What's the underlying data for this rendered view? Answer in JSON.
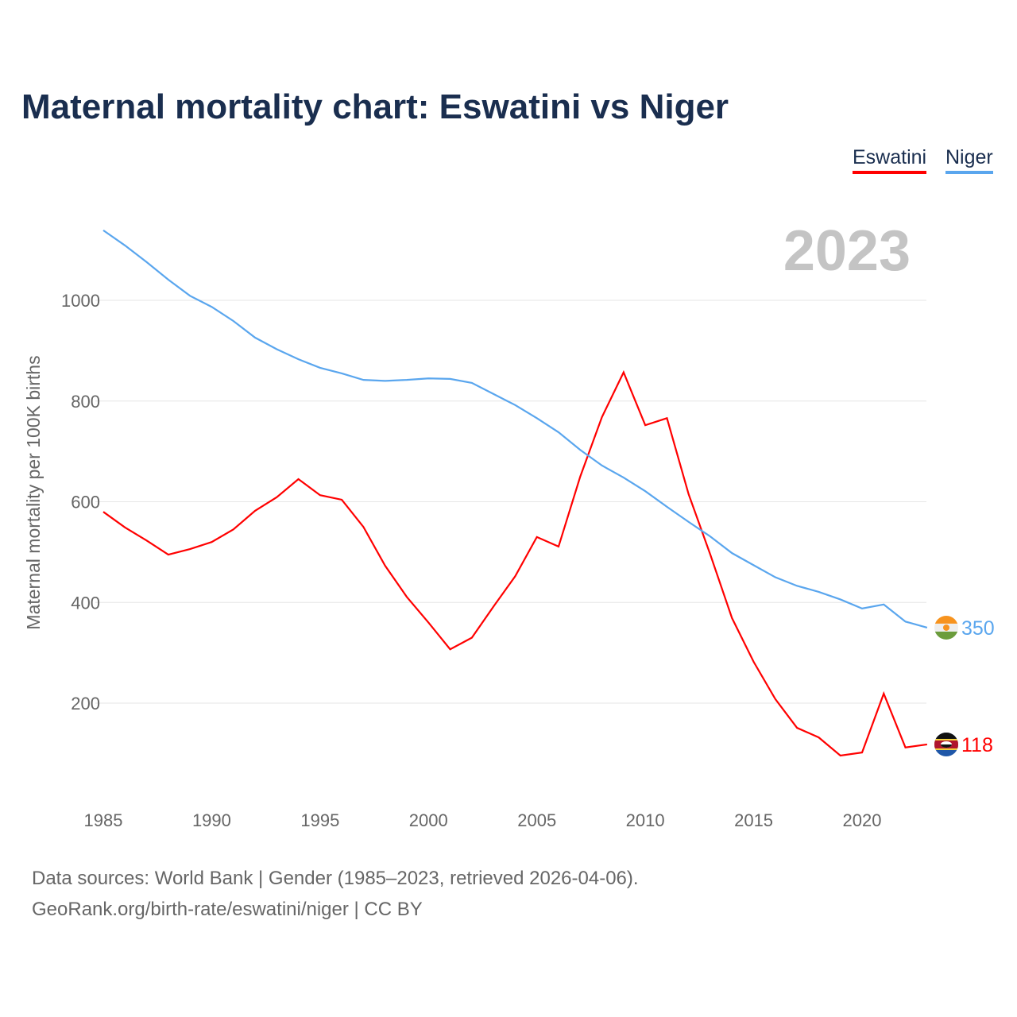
{
  "title": "Maternal mortality chart: Eswatini vs Niger",
  "footer": {
    "line1": "Data sources: World Bank | Gender (1985–2023, retrieved 2026-04-06).",
    "line2": "GeoRank.org/birth-rate/eswatini/niger | CC BY"
  },
  "chart_data": {
    "type": "line",
    "title": "Maternal mortality chart: Eswatini vs Niger",
    "ylabel": "Maternal mortality per 100K births",
    "xlabel": "",
    "year_label": "2023",
    "xlim": [
      1985,
      2023
    ],
    "ylim": [
      0,
      1150
    ],
    "xticks": [
      "1985",
      "1990",
      "1995",
      "2000",
      "2005",
      "2010",
      "2015",
      "2020"
    ],
    "yticks": [
      "200",
      "400",
      "600",
      "800",
      "1000"
    ],
    "grid": true,
    "legend_placement": "top-right",
    "x": [
      1985,
      1986,
      1987,
      1988,
      1989,
      1990,
      1991,
      1992,
      1993,
      1994,
      1995,
      1996,
      1997,
      1998,
      1999,
      2000,
      2001,
      2002,
      2003,
      2004,
      2005,
      2006,
      2007,
      2008,
      2009,
      2010,
      2011,
      2012,
      2013,
      2014,
      2015,
      2016,
      2017,
      2018,
      2019,
      2020,
      2021,
      2022,
      2023
    ],
    "series": [
      {
        "name": "Eswatini",
        "color": "#ff0000",
        "end_label": "118",
        "values": [
          580,
          549,
          523,
          495,
          506,
          520,
          545,
          582,
          609,
          645,
          613,
          604,
          550,
          473,
          411,
          360,
          307,
          330,
          392,
          452,
          530,
          511,
          650,
          768,
          857,
          752,
          766,
          615,
          495,
          369,
          282,
          208,
          151,
          132,
          96,
          102,
          219,
          112,
          118
        ]
      },
      {
        "name": "Niger",
        "color": "#5aa6ee",
        "end_label": "350",
        "values": [
          1139,
          1109,
          1076,
          1041,
          1009,
          987,
          959,
          926,
          903,
          883,
          866,
          855,
          842,
          840,
          842,
          845,
          844,
          836,
          814,
          792,
          766,
          738,
          703,
          672,
          648,
          621,
          590,
          560,
          531,
          498,
          474,
          450,
          433,
          421,
          406,
          388,
          396,
          362,
          350
        ]
      }
    ]
  }
}
